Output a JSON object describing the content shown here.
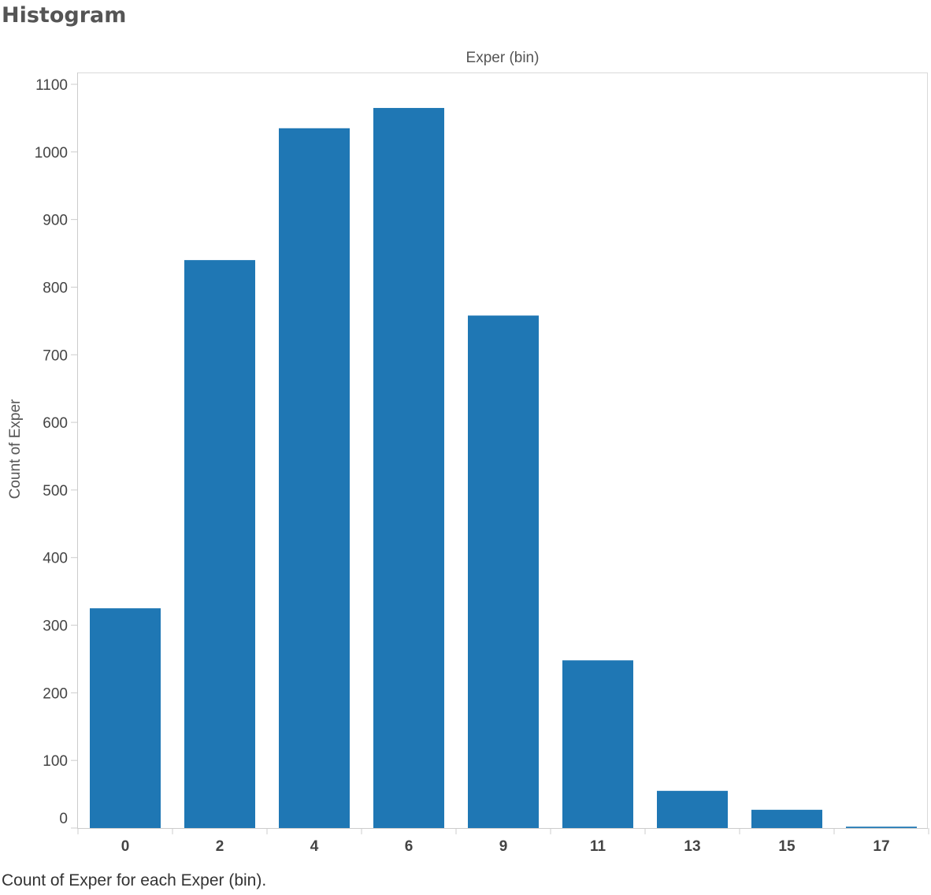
{
  "title": "Histogram",
  "caption": "Count of Exper for each Exper (bin).",
  "colors": {
    "bar": "#1f77b4",
    "axis": "#cccccc",
    "tick_text": "#444444"
  },
  "chart_data": {
    "type": "bar",
    "xlabel": "Exper (bin)",
    "ylabel": "Count of Exper",
    "categories": [
      "0",
      "2",
      "4",
      "6",
      "9",
      "11",
      "13",
      "15",
      "17"
    ],
    "values": [
      325,
      840,
      1035,
      1065,
      758,
      248,
      55,
      27,
      2
    ],
    "ylim": [
      0,
      1100
    ],
    "yticks": [
      0,
      100,
      200,
      300,
      400,
      500,
      600,
      700,
      800,
      900,
      1000,
      1100
    ],
    "grid": false
  }
}
